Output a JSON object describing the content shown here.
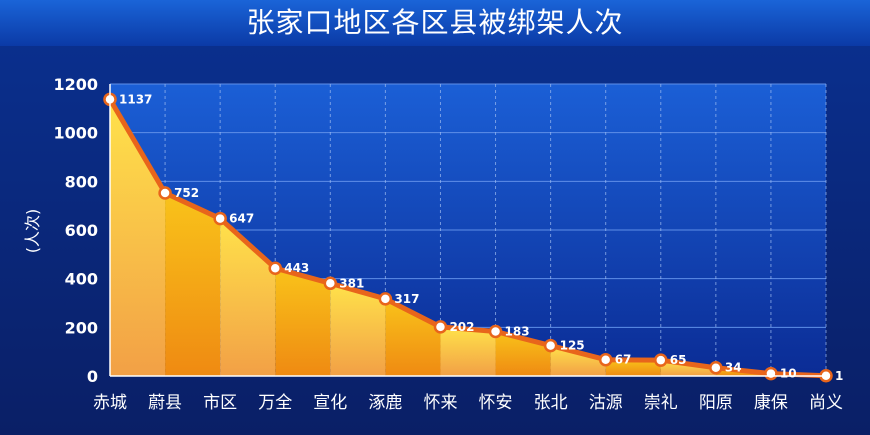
{
  "chart_data": {
    "type": "area",
    "title": "张家口地区各区县被绑架人次",
    "ylabel": "(人次)",
    "xlabel": "",
    "ylim": [
      0,
      1200
    ],
    "yticks": [
      0,
      200,
      400,
      600,
      800,
      1000,
      1200
    ],
    "grid": true,
    "legend": "none",
    "categories": [
      "赤城",
      "蔚县",
      "市区",
      "万全",
      "宣化",
      "涿鹿",
      "怀来",
      "怀安",
      "张北",
      "沽源",
      "崇礼",
      "阳原",
      "康保",
      "尚义"
    ],
    "series": [
      {
        "values": [
          1137,
          752,
          647,
          443,
          381,
          317,
          202,
          183,
          125,
          67,
          65,
          34,
          10,
          1
        ]
      }
    ],
    "colors": {
      "line": "#e8651b",
      "marker_fill": "#ffffff",
      "marker_stroke": "#e8651b",
      "fill_top": "#ffe24a",
      "fill_bottom": "#ef8a12"
    }
  }
}
